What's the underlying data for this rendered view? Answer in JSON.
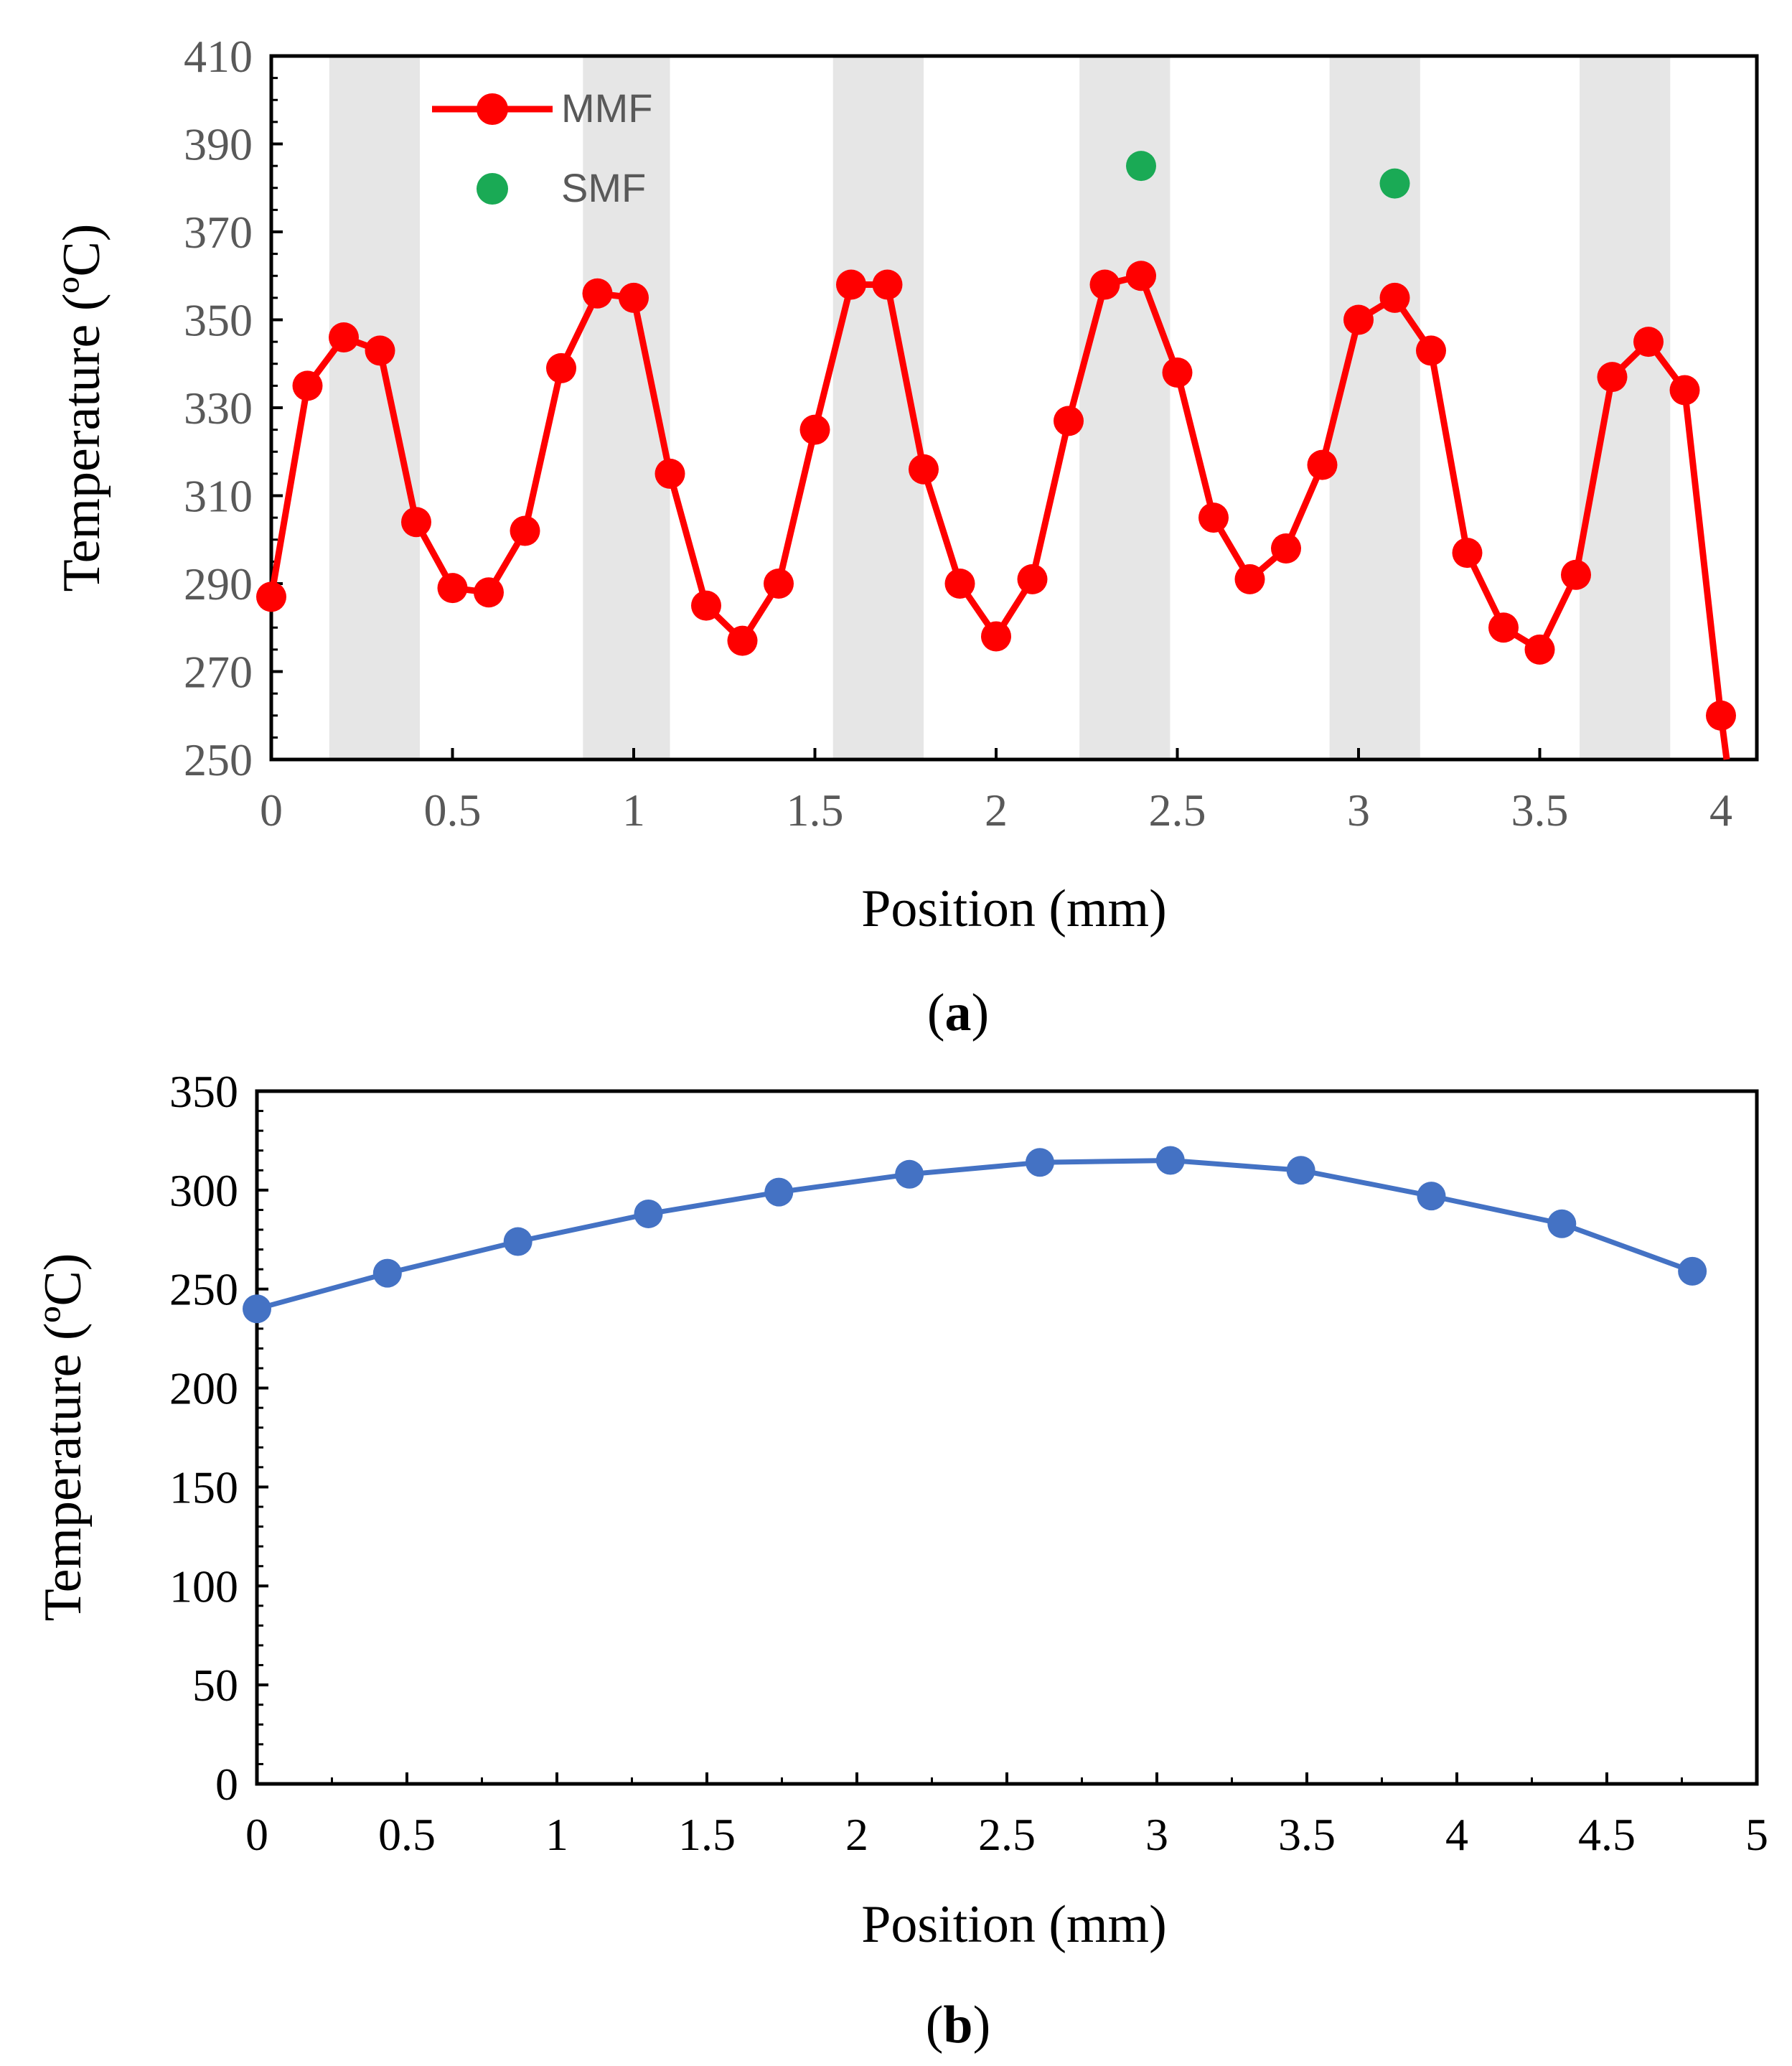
{
  "chart_data": [
    {
      "type": "line",
      "panel_label": "a",
      "title": "",
      "xlabel": "Position (mm)",
      "ylabel": "Temperature (ºC)",
      "xlim": [
        0,
        4
      ],
      "ylim": [
        250,
        410
      ],
      "xticks": [
        "0",
        "0.5",
        "1",
        "1.5",
        "2",
        "2.5",
        "3",
        "3.5",
        "4"
      ],
      "yticks": [
        "250",
        "270",
        "290",
        "310",
        "330",
        "350",
        "370",
        "390",
        "410"
      ],
      "shaded_bands": [
        [
          0.16,
          0.41
        ],
        [
          0.86,
          1.1
        ],
        [
          1.55,
          1.8
        ],
        [
          2.23,
          2.48
        ],
        [
          2.92,
          3.17
        ],
        [
          3.61,
          3.86
        ]
      ],
      "legend_position": "top-left",
      "series": [
        {
          "name": "MMF",
          "color": "#ff0000",
          "style": "line-marker",
          "x": [
            0,
            0.1,
            0.2,
            0.3,
            0.4,
            0.5,
            0.6,
            0.7,
            0.8,
            0.9,
            1.0,
            1.1,
            1.2,
            1.3,
            1.4,
            1.5,
            1.6,
            1.7,
            1.8,
            1.9,
            2.0,
            2.1,
            2.2,
            2.3,
            2.4,
            2.5,
            2.6,
            2.7,
            2.8,
            2.9,
            3.0,
            3.1,
            3.2,
            3.3,
            3.4,
            3.5,
            3.6,
            3.7,
            3.8,
            3.9,
            4.0
          ],
          "y": [
            287,
            335,
            346,
            343,
            304,
            289,
            288,
            302,
            339,
            356,
            355,
            315,
            285,
            277,
            290,
            325,
            358,
            358,
            316,
            290,
            278,
            291,
            327,
            358,
            360,
            338,
            305,
            291,
            298,
            317,
            350,
            355,
            343,
            297,
            280,
            275,
            292,
            337,
            345,
            334,
            260
          ]
        },
        {
          "name": "SMF",
          "color": "#1aaa55",
          "style": "marker",
          "x": [
            2.4,
            3.1
          ],
          "y": [
            385,
            381
          ]
        }
      ]
    },
    {
      "type": "line",
      "panel_label": "b",
      "title": "",
      "xlabel": "Position (mm)",
      "ylabel": "Temperature (ºC)",
      "xlim": [
        0,
        5
      ],
      "ylim": [
        0,
        350
      ],
      "xticks": [
        "0",
        "0.5",
        "1",
        "1.5",
        "2",
        "2.5",
        "3",
        "3.5",
        "4",
        "4.5",
        "5"
      ],
      "yticks": [
        "0",
        "50",
        "100",
        "150",
        "200",
        "250",
        "300",
        "350"
      ],
      "series": [
        {
          "name": "",
          "color": "#4472c4",
          "style": "line-marker",
          "x": [
            0,
            0.435,
            0.87,
            1.305,
            1.74,
            2.175,
            2.61,
            3.045,
            3.48,
            3.915,
            4.35,
            4.785
          ],
          "y": [
            240,
            258,
            274,
            288,
            299,
            308,
            314,
            315,
            310,
            297,
            283,
            259
          ]
        }
      ]
    }
  ]
}
